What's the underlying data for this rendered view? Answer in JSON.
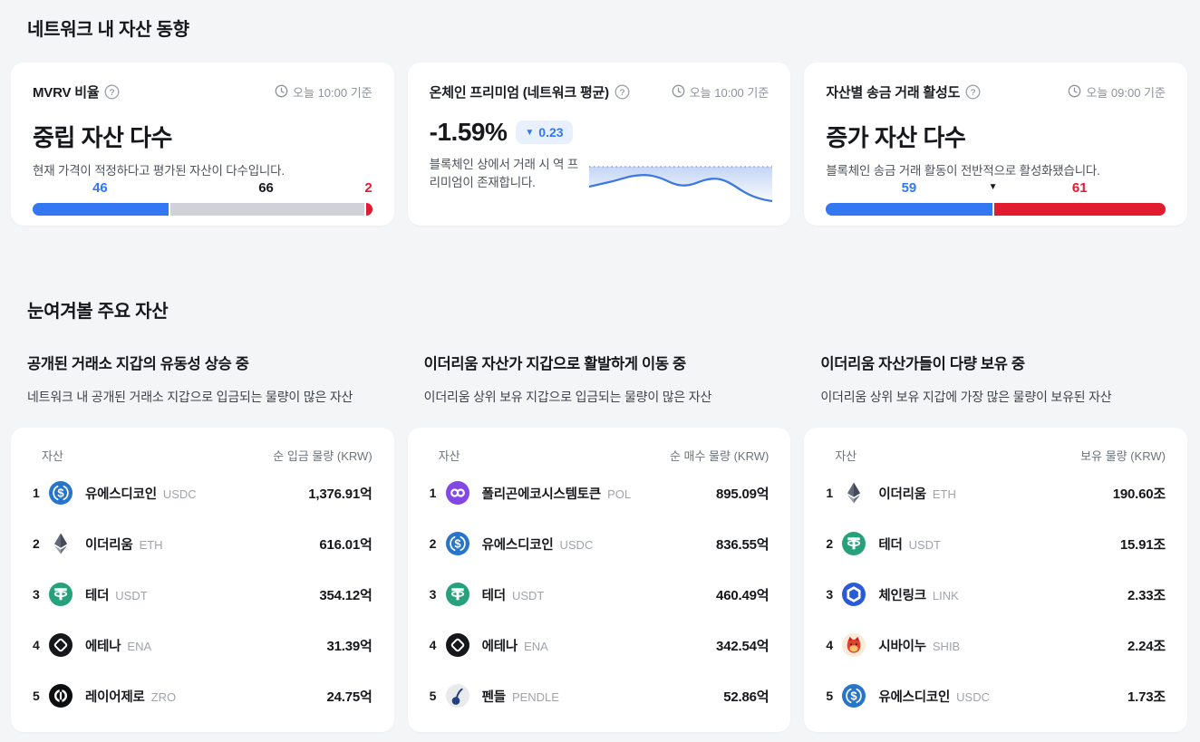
{
  "icons": {
    "down_triangle": "▼"
  },
  "section_network": {
    "title": "네트워크 내 자산 동향",
    "cards": [
      {
        "title": "MVRV 비율",
        "timestamp": "오늘 10:00 기준",
        "status": "중립 자산 다수",
        "description": "현재 가격이 적정하다고 평가된 자산이 다수입니다.",
        "bar": {
          "segments": [
            {
              "label": "46",
              "value": 46,
              "color": "#3377F3",
              "label_color": "#3377F3"
            },
            {
              "label": "66",
              "value": 66,
              "color": "#CFD2D6",
              "label_color": "#17191D"
            },
            {
              "label": "2",
              "value": 2,
              "color": "#E11B30",
              "label_color": "#E11B30"
            }
          ]
        }
      },
      {
        "title": "온체인 프리미엄 (네트워크 평균)",
        "timestamp": "오늘 10:00 기준",
        "value": "-1.59%",
        "change": {
          "direction": "down",
          "value": "0.23"
        },
        "description": "블록체인 상에서 거래 시 역 프리미엄이 존재합니다.",
        "sparkline": [
          25,
          23,
          21,
          19,
          16.5,
          14,
          12.5,
          12,
          13,
          15.5,
          19.5,
          23,
          24,
          22.5,
          19,
          16.5,
          16,
          18,
          22.5,
          28.5,
          33.5,
          37,
          39.5,
          41
        ]
      },
      {
        "title": "자산별 송금 거래 활성도",
        "timestamp": "오늘 09:00 기준",
        "status": "증가 자산 다수",
        "description": "블록체인 송금 거래 활동이 전반적으로 활성화됐습니다.",
        "bar": {
          "marker": "▼",
          "segments": [
            {
              "label": "59",
              "value": 59,
              "color": "#3377F3",
              "label_color": "#3377F3"
            },
            {
              "label": "61",
              "value": 61,
              "color": "#E11B30",
              "label_color": "#E11B30"
            }
          ]
        }
      }
    ]
  },
  "section_assets": {
    "title": "눈여겨볼 주요 자산",
    "columns": [
      {
        "heading": "공개된 거래소 지갑의 유동성 상승 중",
        "subheading": "네트워크 내 공개된 거래소 지갑으로 입금되는 물량이 많은 자산",
        "col_asset": "자산",
        "col_value": "순 입금 물량 (KRW)",
        "rows": [
          {
            "rank": "1",
            "name": "유에스디코인",
            "ticker": "USDC",
            "value": "1,376.91억",
            "icon": "usdc"
          },
          {
            "rank": "2",
            "name": "이더리움",
            "ticker": "ETH",
            "value": "616.01억",
            "icon": "eth"
          },
          {
            "rank": "3",
            "name": "테더",
            "ticker": "USDT",
            "value": "354.12억",
            "icon": "usdt"
          },
          {
            "rank": "4",
            "name": "에테나",
            "ticker": "ENA",
            "value": "31.39억",
            "icon": "ena"
          },
          {
            "rank": "5",
            "name": "레이어제로",
            "ticker": "ZRO",
            "value": "24.75억",
            "icon": "zro"
          }
        ]
      },
      {
        "heading": "이더리움 자산가 지갑으로 활발하게 이동 중",
        "subheading": "이더리움 상위 보유 지갑으로 입금되는 물량이 많은 자산",
        "col_asset": "자산",
        "col_value": "순 매수 물량 (KRW)",
        "rows": [
          {
            "rank": "1",
            "name": "폴리곤에코시스템토큰",
            "ticker": "POL",
            "value": "895.09억",
            "icon": "pol"
          },
          {
            "rank": "2",
            "name": "유에스디코인",
            "ticker": "USDC",
            "value": "836.55억",
            "icon": "usdc"
          },
          {
            "rank": "3",
            "name": "테더",
            "ticker": "USDT",
            "value": "460.49억",
            "icon": "usdt"
          },
          {
            "rank": "4",
            "name": "에테나",
            "ticker": "ENA",
            "value": "342.54억",
            "icon": "ena"
          },
          {
            "rank": "5",
            "name": "펜들",
            "ticker": "PENDLE",
            "value": "52.86억",
            "icon": "pendle"
          }
        ]
      },
      {
        "heading": "이더리움 자산가들이 다량 보유 중",
        "subheading": "이더리움 상위 보유 지갑에 가장 많은 물량이 보유된 자산",
        "col_asset": "자산",
        "col_value": "보유 물량 (KRW)",
        "rows": [
          {
            "rank": "1",
            "name": "이더리움",
            "ticker": "ETH",
            "value": "190.60조",
            "icon": "eth"
          },
          {
            "rank": "2",
            "name": "테더",
            "ticker": "USDT",
            "value": "15.91조",
            "icon": "usdt"
          },
          {
            "rank": "3",
            "name": "체인링크",
            "ticker": "LINK",
            "value": "2.33조",
            "icon": "link"
          },
          {
            "rank": "4",
            "name": "시바이누",
            "ticker": "SHIB",
            "value": "2.24조",
            "icon": "shib"
          },
          {
            "rank": "5",
            "name": "유에스디코인",
            "ticker": "USDC",
            "value": "1.73조",
            "icon": "usdc"
          }
        ]
      }
    ]
  }
}
